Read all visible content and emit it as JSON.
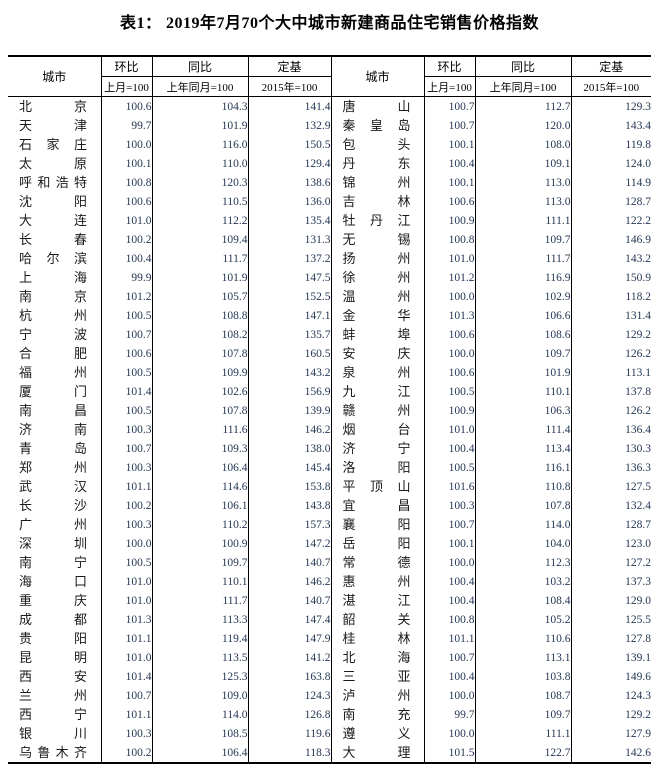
{
  "title": "表1： 2019年7月70个大中城市新建商品住宅销售价格指数",
  "header": {
    "city": "城市",
    "cols": [
      {
        "label": "环比",
        "sub": "上月=100"
      },
      {
        "label": "同比",
        "sub": "上年同月=100"
      },
      {
        "label": "定基",
        "sub": "2015年=100"
      }
    ]
  },
  "colors": {
    "border": "#000000",
    "title_text": "#000000",
    "city_text": "#1a1a1a",
    "number_text": "#243754"
  },
  "rows_left": [
    {
      "city": "北京",
      "mom": "100.6",
      "yoy": "104.3",
      "base": "141.4"
    },
    {
      "city": "天津",
      "mom": "99.7",
      "yoy": "101.9",
      "base": "132.9"
    },
    {
      "city": "石家庄",
      "mom": "100.0",
      "yoy": "116.0",
      "base": "150.5"
    },
    {
      "city": "太原",
      "mom": "100.1",
      "yoy": "110.0",
      "base": "129.4"
    },
    {
      "city": "呼和浩特",
      "mom": "100.8",
      "yoy": "120.3",
      "base": "138.6"
    },
    {
      "city": "沈阳",
      "mom": "100.6",
      "yoy": "110.5",
      "base": "136.0"
    },
    {
      "city": "大连",
      "mom": "101.0",
      "yoy": "112.2",
      "base": "135.4"
    },
    {
      "city": "长春",
      "mom": "100.2",
      "yoy": "109.4",
      "base": "131.3"
    },
    {
      "city": "哈尔滨",
      "mom": "100.4",
      "yoy": "111.7",
      "base": "137.2"
    },
    {
      "city": "上海",
      "mom": "99.9",
      "yoy": "101.9",
      "base": "147.5"
    },
    {
      "city": "南京",
      "mom": "101.2",
      "yoy": "105.7",
      "base": "152.5"
    },
    {
      "city": "杭州",
      "mom": "100.5",
      "yoy": "108.8",
      "base": "147.1"
    },
    {
      "city": "宁波",
      "mom": "100.7",
      "yoy": "108.2",
      "base": "135.7"
    },
    {
      "city": "合肥",
      "mom": "100.6",
      "yoy": "107.8",
      "base": "160.5"
    },
    {
      "city": "福州",
      "mom": "100.5",
      "yoy": "109.9",
      "base": "143.2"
    },
    {
      "city": "厦门",
      "mom": "101.4",
      "yoy": "102.6",
      "base": "156.9"
    },
    {
      "city": "南昌",
      "mom": "100.5",
      "yoy": "107.8",
      "base": "139.9"
    },
    {
      "city": "济南",
      "mom": "100.3",
      "yoy": "111.6",
      "base": "146.2"
    },
    {
      "city": "青岛",
      "mom": "100.7",
      "yoy": "109.3",
      "base": "138.0"
    },
    {
      "city": "郑州",
      "mom": "100.3",
      "yoy": "106.4",
      "base": "145.4"
    },
    {
      "city": "武汉",
      "mom": "101.1",
      "yoy": "114.6",
      "base": "153.8"
    },
    {
      "city": "长沙",
      "mom": "100.2",
      "yoy": "106.1",
      "base": "143.8"
    },
    {
      "city": "广州",
      "mom": "100.3",
      "yoy": "110.2",
      "base": "157.3"
    },
    {
      "city": "深圳",
      "mom": "100.0",
      "yoy": "100.9",
      "base": "147.2"
    },
    {
      "city": "南宁",
      "mom": "100.5",
      "yoy": "109.7",
      "base": "140.7"
    },
    {
      "city": "海口",
      "mom": "101.0",
      "yoy": "110.1",
      "base": "146.2"
    },
    {
      "city": "重庆",
      "mom": "101.0",
      "yoy": "111.7",
      "base": "140.7"
    },
    {
      "city": "成都",
      "mom": "101.3",
      "yoy": "113.3",
      "base": "147.4"
    },
    {
      "city": "贵阳",
      "mom": "101.1",
      "yoy": "119.4",
      "base": "147.9"
    },
    {
      "city": "昆明",
      "mom": "101.0",
      "yoy": "113.5",
      "base": "141.2"
    },
    {
      "city": "西安",
      "mom": "101.4",
      "yoy": "125.3",
      "base": "163.8"
    },
    {
      "city": "兰州",
      "mom": "100.7",
      "yoy": "109.0",
      "base": "124.3"
    },
    {
      "city": "西宁",
      "mom": "101.1",
      "yoy": "114.0",
      "base": "126.8"
    },
    {
      "city": "银川",
      "mom": "100.3",
      "yoy": "108.5",
      "base": "119.6"
    },
    {
      "city": "乌鲁木齐",
      "mom": "100.2",
      "yoy": "106.4",
      "base": "118.3"
    }
  ],
  "rows_right": [
    {
      "city": "唐山",
      "mom": "100.7",
      "yoy": "112.7",
      "base": "129.3"
    },
    {
      "city": "秦皇岛",
      "mom": "100.7",
      "yoy": "120.0",
      "base": "143.4"
    },
    {
      "city": "包头",
      "mom": "100.1",
      "yoy": "108.0",
      "base": "119.8"
    },
    {
      "city": "丹东",
      "mom": "100.4",
      "yoy": "109.1",
      "base": "124.0"
    },
    {
      "city": "锦州",
      "mom": "100.1",
      "yoy": "113.0",
      "base": "114.9"
    },
    {
      "city": "吉林",
      "mom": "100.6",
      "yoy": "113.0",
      "base": "128.7"
    },
    {
      "city": "牡丹江",
      "mom": "100.9",
      "yoy": "111.1",
      "base": "122.2"
    },
    {
      "city": "无锡",
      "mom": "100.8",
      "yoy": "109.7",
      "base": "146.9"
    },
    {
      "city": "扬州",
      "mom": "101.0",
      "yoy": "111.7",
      "base": "143.2"
    },
    {
      "city": "徐州",
      "mom": "101.2",
      "yoy": "116.9",
      "base": "150.9"
    },
    {
      "city": "温州",
      "mom": "100.0",
      "yoy": "102.9",
      "base": "118.2"
    },
    {
      "city": "金华",
      "mom": "101.3",
      "yoy": "106.6",
      "base": "131.4"
    },
    {
      "city": "蚌埠",
      "mom": "100.6",
      "yoy": "108.6",
      "base": "129.2"
    },
    {
      "city": "安庆",
      "mom": "100.0",
      "yoy": "109.7",
      "base": "126.2"
    },
    {
      "city": "泉州",
      "mom": "100.6",
      "yoy": "101.9",
      "base": "113.1"
    },
    {
      "city": "九江",
      "mom": "100.5",
      "yoy": "110.1",
      "base": "137.8"
    },
    {
      "city": "赣州",
      "mom": "100.9",
      "yoy": "106.3",
      "base": "126.2"
    },
    {
      "city": "烟台",
      "mom": "101.0",
      "yoy": "111.4",
      "base": "136.4"
    },
    {
      "city": "济宁",
      "mom": "100.4",
      "yoy": "113.4",
      "base": "130.3"
    },
    {
      "city": "洛阳",
      "mom": "100.5",
      "yoy": "116.1",
      "base": "136.3"
    },
    {
      "city": "平顶山",
      "mom": "101.6",
      "yoy": "110.8",
      "base": "127.5"
    },
    {
      "city": "宜昌",
      "mom": "100.3",
      "yoy": "107.8",
      "base": "132.4"
    },
    {
      "city": "襄阳",
      "mom": "100.7",
      "yoy": "114.0",
      "base": "128.7"
    },
    {
      "city": "岳阳",
      "mom": "100.1",
      "yoy": "104.0",
      "base": "123.0"
    },
    {
      "city": "常德",
      "mom": "100.0",
      "yoy": "112.3",
      "base": "127.2"
    },
    {
      "city": "惠州",
      "mom": "100.4",
      "yoy": "103.2",
      "base": "137.3"
    },
    {
      "city": "湛江",
      "mom": "100.4",
      "yoy": "108.4",
      "base": "129.0"
    },
    {
      "city": "韶关",
      "mom": "100.8",
      "yoy": "105.2",
      "base": "125.5"
    },
    {
      "city": "桂林",
      "mom": "101.1",
      "yoy": "110.6",
      "base": "127.8"
    },
    {
      "city": "北海",
      "mom": "100.7",
      "yoy": "113.1",
      "base": "139.1"
    },
    {
      "city": "三亚",
      "mom": "100.4",
      "yoy": "103.8",
      "base": "149.6"
    },
    {
      "city": "泸州",
      "mom": "100.0",
      "yoy": "108.7",
      "base": "124.3"
    },
    {
      "city": "南充",
      "mom": "99.7",
      "yoy": "109.7",
      "base": "129.2"
    },
    {
      "city": "遵义",
      "mom": "100.0",
      "yoy": "111.1",
      "base": "127.9"
    },
    {
      "city": "大理",
      "mom": "101.5",
      "yoy": "122.7",
      "base": "142.6"
    }
  ]
}
